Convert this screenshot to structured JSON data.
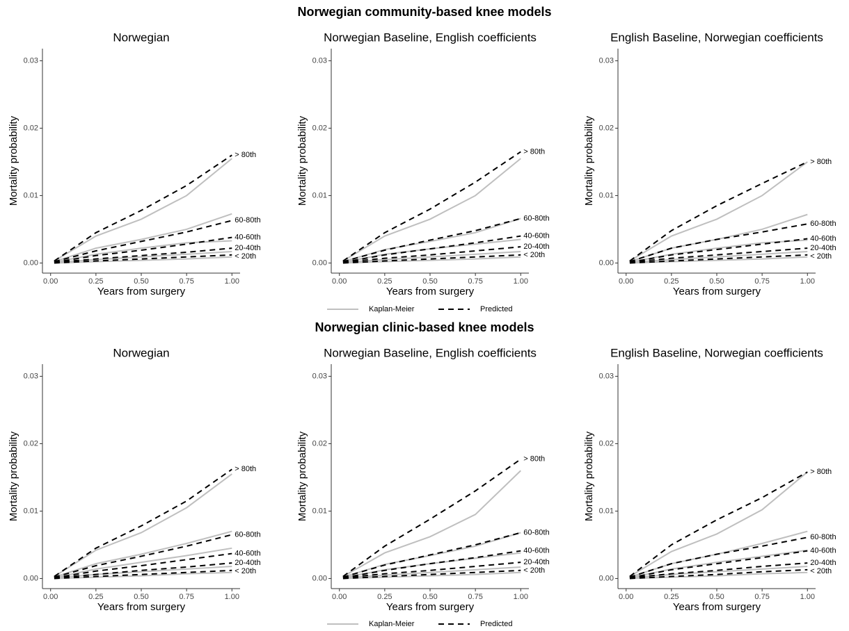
{
  "sections": [
    {
      "title": "Norwegian community-based knee models",
      "legend": [
        {
          "name": "Kaplan-Meier",
          "color": "#bfbfbf",
          "dash": false
        },
        {
          "name": "Predicted",
          "color": "#000000",
          "dash": true
        }
      ]
    },
    {
      "title": "Norwegian clinic-based knee models",
      "legend": [
        {
          "name": "Kaplan-Meier",
          "color": "#bfbfbf",
          "dash": false
        },
        {
          "name": "Predicted",
          "color": "#000000",
          "dash": true
        }
      ]
    }
  ],
  "chart_data": [
    {
      "type": "line",
      "title": "Norwegian",
      "xlabel": "Years from surgery",
      "ylabel": "Mortality probability",
      "xlim": [
        -0.045,
        1.045
      ],
      "ylim": [
        -0.0015,
        0.0318
      ],
      "xticks": [
        {
          "value": 0,
          "label": "0.00"
        },
        0.25,
        {
          "value": 0.5,
          "label": "0.50"
        },
        0.75,
        {
          "value": 1,
          "label": "1.00"
        }
      ],
      "yticks": [
        {
          "value": 0,
          "label": "0.00"
        },
        0.01,
        0.02,
        0.03
      ],
      "x": [
        0.02,
        0.25,
        0.5,
        0.75,
        1.0
      ],
      "series": [
        {
          "group": "> 80th",
          "km": [
            0.0003,
            0.004,
            0.0065,
            0.01,
            0.0155
          ],
          "predicted": [
            0.0003,
            0.0045,
            0.0078,
            0.0115,
            0.016
          ]
        },
        {
          "group": "60-80th",
          "km": [
            0.0002,
            0.0022,
            0.0035,
            0.005,
            0.0073
          ],
          "predicted": [
            0.0002,
            0.0018,
            0.0032,
            0.0046,
            0.0063
          ]
        },
        {
          "group": "40-60th",
          "km": [
            0.0001,
            0.0013,
            0.0022,
            0.003,
            0.0033
          ],
          "predicted": [
            0.0001,
            0.0011,
            0.0019,
            0.0028,
            0.0038
          ]
        },
        {
          "group": "20-40th",
          "km": [
            0.0001,
            0.0005,
            0.0009,
            0.0013,
            0.0017
          ],
          "predicted": [
            0.0001,
            0.0006,
            0.0011,
            0.0016,
            0.0022
          ]
        },
        {
          "group": "< 20th",
          "km": [
            0,
            0.0002,
            0.0004,
            0.0006,
            0.0009
          ],
          "predicted": [
            0,
            0.0003,
            0.0006,
            0.0009,
            0.0012
          ]
        }
      ]
    },
    {
      "type": "line",
      "title": "Norwegian Baseline, English coefficients",
      "xlabel": "Years from surgery",
      "ylabel": "Mortality probability",
      "xlim": [
        -0.045,
        1.045
      ],
      "ylim": [
        -0.0015,
        0.0318
      ],
      "xticks": [
        {
          "value": 0,
          "label": "0.00"
        },
        0.25,
        {
          "value": 0.5,
          "label": "0.50"
        },
        0.75,
        {
          "value": 1,
          "label": "1.00"
        }
      ],
      "yticks": [
        {
          "value": 0,
          "label": "0.00"
        },
        0.01,
        0.02,
        0.03
      ],
      "x": [
        0.02,
        0.25,
        0.5,
        0.75,
        1.0
      ],
      "series": [
        {
          "group": "> 80th",
          "km": [
            0.0003,
            0.004,
            0.0065,
            0.01,
            0.0155
          ],
          "predicted": [
            0.0003,
            0.0045,
            0.008,
            0.012,
            0.0165
          ]
        },
        {
          "group": "60-80th",
          "km": [
            0.0002,
            0.002,
            0.0032,
            0.0045,
            0.0066
          ],
          "predicted": [
            0.0002,
            0.0019,
            0.0034,
            0.0048,
            0.0066
          ]
        },
        {
          "group": "40-60th",
          "km": [
            0.0001,
            0.0013,
            0.0021,
            0.0028,
            0.0035
          ],
          "predicted": [
            0.0001,
            0.0012,
            0.0021,
            0.003,
            0.004
          ]
        },
        {
          "group": "20-40th",
          "km": [
            0.0001,
            0.0005,
            0.0009,
            0.0013,
            0.0017
          ],
          "predicted": [
            0.0001,
            0.0007,
            0.0012,
            0.0018,
            0.0024
          ]
        },
        {
          "group": "< 20th",
          "km": [
            0,
            0.0002,
            0.0004,
            0.0006,
            0.0009
          ],
          "predicted": [
            0,
            0.0003,
            0.0006,
            0.0009,
            0.0012
          ]
        }
      ]
    },
    {
      "type": "line",
      "title": "English Baseline, Norwegian coefficients",
      "xlabel": "Years from surgery",
      "ylabel": "Mortality probability",
      "xlim": [
        -0.045,
        1.045
      ],
      "ylim": [
        -0.0015,
        0.0318
      ],
      "xticks": [
        {
          "value": 0,
          "label": "0.00"
        },
        0.25,
        {
          "value": 0.5,
          "label": "0.50"
        },
        0.75,
        {
          "value": 1,
          "label": "1.00"
        }
      ],
      "yticks": [
        {
          "value": 0,
          "label": "0.00"
        },
        0.01,
        0.02,
        0.03
      ],
      "x": [
        0.02,
        0.25,
        0.5,
        0.75,
        1.0
      ],
      "series": [
        {
          "group": "> 80th",
          "km": [
            0.0003,
            0.004,
            0.0065,
            0.01,
            0.015
          ],
          "predicted": [
            0.0003,
            0.0048,
            0.0085,
            0.0118,
            0.015
          ]
        },
        {
          "group": "60-80th",
          "km": [
            0.0002,
            0.0022,
            0.0035,
            0.005,
            0.0072
          ],
          "predicted": [
            0.0002,
            0.0022,
            0.0035,
            0.0046,
            0.0058
          ]
        },
        {
          "group": "40-60th",
          "km": [
            0.0001,
            0.0013,
            0.0022,
            0.003,
            0.0034
          ],
          "predicted": [
            0.0001,
            0.0012,
            0.002,
            0.0028,
            0.0036
          ]
        },
        {
          "group": "20-40th",
          "km": [
            0.0001,
            0.0005,
            0.0009,
            0.0013,
            0.0017
          ],
          "predicted": [
            0.0001,
            0.0007,
            0.0012,
            0.0017,
            0.0022
          ]
        },
        {
          "group": "< 20th",
          "km": [
            0,
            0.0002,
            0.0004,
            0.0006,
            0.0009
          ],
          "predicted": [
            0,
            0.0003,
            0.0006,
            0.0009,
            0.0012
          ]
        }
      ]
    },
    {
      "type": "line",
      "title": "Norwegian",
      "xlabel": "Years from surgery",
      "ylabel": "Mortality probability",
      "xlim": [
        -0.045,
        1.045
      ],
      "ylim": [
        -0.0015,
        0.0318
      ],
      "xticks": [
        {
          "value": 0,
          "label": "0.00"
        },
        0.25,
        {
          "value": 0.5,
          "label": "0.50"
        },
        0.75,
        {
          "value": 1,
          "label": "1.00"
        }
      ],
      "yticks": [
        {
          "value": 0,
          "label": "0.00"
        },
        0.01,
        0.02,
        0.03
      ],
      "x": [
        0.02,
        0.25,
        0.5,
        0.75,
        1.0
      ],
      "series": [
        {
          "group": "> 80th",
          "km": [
            0.0003,
            0.0042,
            0.0068,
            0.0105,
            0.0155
          ],
          "predicted": [
            0.0003,
            0.0045,
            0.0078,
            0.0115,
            0.0162
          ]
        },
        {
          "group": "60-80th",
          "km": [
            0.0002,
            0.0022,
            0.0036,
            0.0052,
            0.007
          ],
          "predicted": [
            0.0002,
            0.0019,
            0.0033,
            0.0048,
            0.0065
          ]
        },
        {
          "group": "40-60th",
          "km": [
            0.0001,
            0.0014,
            0.0024,
            0.0034,
            0.0045
          ],
          "predicted": [
            0.0001,
            0.0011,
            0.0019,
            0.0028,
            0.0037
          ]
        },
        {
          "group": "20-40th",
          "km": [
            0.0001,
            0.0006,
            0.001,
            0.0014,
            0.0018
          ],
          "predicted": [
            0.0001,
            0.0006,
            0.0012,
            0.0017,
            0.0023
          ]
        },
        {
          "group": "< 20th",
          "km": [
            0,
            0.0002,
            0.0004,
            0.0007,
            0.0009
          ],
          "predicted": [
            0,
            0.0003,
            0.0006,
            0.0009,
            0.0012
          ]
        }
      ]
    },
    {
      "type": "line",
      "title": "Norwegian Baseline, English coefficients",
      "xlabel": "Years from surgery",
      "ylabel": "Mortality probability",
      "xlim": [
        -0.045,
        1.045
      ],
      "ylim": [
        -0.0015,
        0.0318
      ],
      "xticks": [
        {
          "value": 0,
          "label": "0.00"
        },
        0.25,
        {
          "value": 0.5,
          "label": "0.50"
        },
        0.75,
        {
          "value": 1,
          "label": "1.00"
        }
      ],
      "yticks": [
        {
          "value": 0,
          "label": "0.00"
        },
        0.01,
        0.02,
        0.03
      ],
      "x": [
        0.02,
        0.25,
        0.5,
        0.75,
        1.0
      ],
      "series": [
        {
          "group": "> 80th",
          "km": [
            0.0003,
            0.0038,
            0.0062,
            0.0095,
            0.016
          ],
          "predicted": [
            0.0003,
            0.0048,
            0.0088,
            0.013,
            0.0177
          ]
        },
        {
          "group": "60-80th",
          "km": [
            0.0002,
            0.0021,
            0.0034,
            0.0048,
            0.0068
          ],
          "predicted": [
            0.0002,
            0.002,
            0.0035,
            0.005,
            0.0068
          ]
        },
        {
          "group": "40-60th",
          "km": [
            0.0001,
            0.0013,
            0.0022,
            0.003,
            0.0038
          ],
          "predicted": [
            0.0001,
            0.0012,
            0.0022,
            0.0031,
            0.0041
          ]
        },
        {
          "group": "20-40th",
          "km": [
            0.0001,
            0.0005,
            0.0009,
            0.0013,
            0.0017
          ],
          "predicted": [
            0.0001,
            0.0007,
            0.0012,
            0.0018,
            0.0024
          ]
        },
        {
          "group": "< 20th",
          "km": [
            0,
            0.0002,
            0.0004,
            0.0006,
            0.0009
          ],
          "predicted": [
            0,
            0.0003,
            0.0006,
            0.0009,
            0.0012
          ]
        }
      ]
    },
    {
      "type": "line",
      "title": "English Baseline, Norwegian coefficients",
      "xlabel": "Years from surgery",
      "ylabel": "Mortality probability",
      "xlim": [
        -0.045,
        1.045
      ],
      "ylim": [
        -0.0015,
        0.0318
      ],
      "xticks": [
        {
          "value": 0,
          "label": "0.00"
        },
        0.25,
        {
          "value": 0.5,
          "label": "0.50"
        },
        0.75,
        {
          "value": 1,
          "label": "1.00"
        }
      ],
      "yticks": [
        {
          "value": 0,
          "label": "0.00"
        },
        0.01,
        0.02,
        0.03
      ],
      "x": [
        0.02,
        0.25,
        0.5,
        0.75,
        1.0
      ],
      "series": [
        {
          "group": "> 80th",
          "km": [
            0.0003,
            0.004,
            0.0066,
            0.0102,
            0.0158
          ],
          "predicted": [
            0.0003,
            0.005,
            0.0087,
            0.012,
            0.0158
          ]
        },
        {
          "group": "60-80th",
          "km": [
            0.0002,
            0.0022,
            0.0036,
            0.0052,
            0.007
          ],
          "predicted": [
            0.0002,
            0.0022,
            0.0036,
            0.0048,
            0.0061
          ]
        },
        {
          "group": "40-60th",
          "km": [
            0.0001,
            0.0014,
            0.0024,
            0.0033,
            0.0042
          ],
          "predicted": [
            0.0001,
            0.0013,
            0.0022,
            0.0031,
            0.0041
          ]
        },
        {
          "group": "20-40th",
          "km": [
            0.0001,
            0.0006,
            0.001,
            0.0014,
            0.0018
          ],
          "predicted": [
            0.0001,
            0.0007,
            0.0012,
            0.0018,
            0.0023
          ]
        },
        {
          "group": "< 20th",
          "km": [
            0,
            0.0002,
            0.0004,
            0.0007,
            0.0009
          ],
          "predicted": [
            0,
            0.0003,
            0.0006,
            0.001,
            0.0013
          ]
        }
      ]
    }
  ]
}
